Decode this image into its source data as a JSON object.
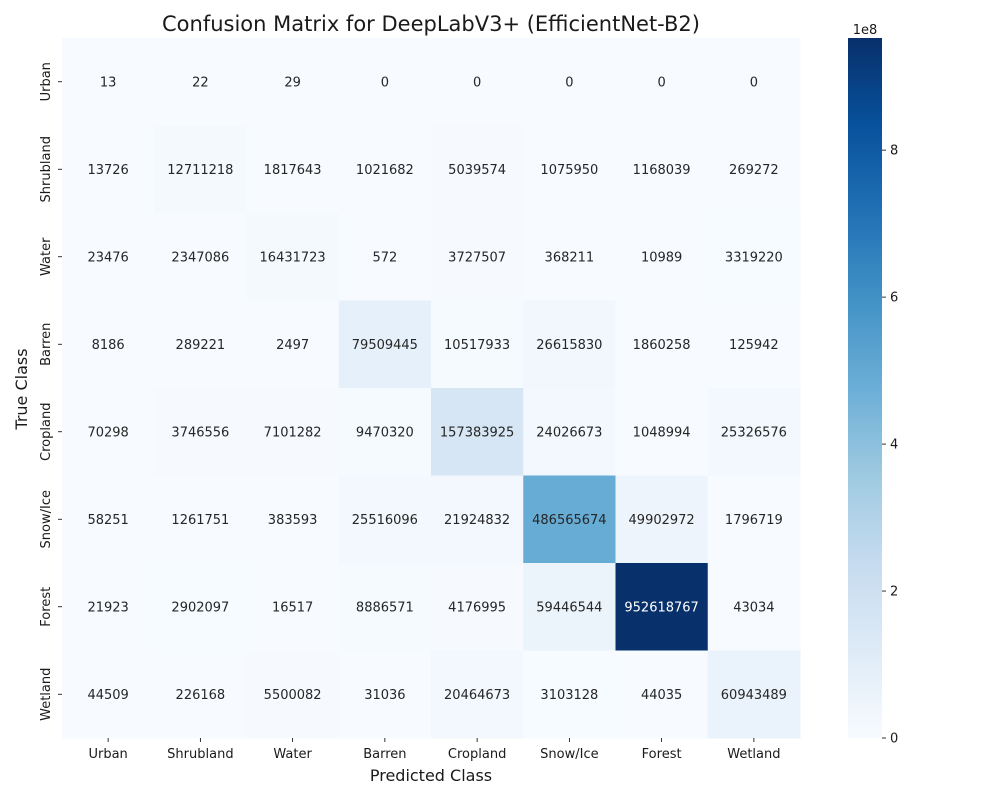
{
  "chart_data": {
    "type": "heatmap",
    "title": "Confusion Matrix for DeepLabV3+ (EfficientNet-B2)",
    "xlabel": "Predicted Class",
    "ylabel": "True Class",
    "x_categories": [
      "Urban",
      "Shrubland",
      "Water",
      "Barren",
      "Cropland",
      "Snow/Ice",
      "Forest",
      "Wetland"
    ],
    "y_categories": [
      "Urban",
      "Shrubland",
      "Water",
      "Barren",
      "Cropland",
      "Snow/Ice",
      "Forest",
      "Wetland"
    ],
    "values": [
      [
        13,
        22,
        29,
        0,
        0,
        0,
        0,
        0
      ],
      [
        13726,
        12711218,
        1817643,
        1021682,
        5039574,
        1075950,
        1168039,
        269272
      ],
      [
        23476,
        2347086,
        16431723,
        572,
        3727507,
        368211,
        10989,
        3319220
      ],
      [
        8186,
        289221,
        2497,
        79509445,
        10517933,
        26615830,
        1860258,
        125942
      ],
      [
        70298,
        3746556,
        7101282,
        9470320,
        157383925,
        24026673,
        1048994,
        25326576
      ],
      [
        58251,
        1261751,
        383593,
        25516096,
        21924832,
        486565674,
        49902972,
        1796719
      ],
      [
        21923,
        2902097,
        16517,
        8886571,
        4176995,
        59446544,
        952618767,
        43034
      ],
      [
        44509,
        226168,
        5500082,
        31036,
        20464673,
        3103128,
        44035,
        60943489
      ]
    ],
    "colormap": "Blues",
    "colorbar": {
      "min": 0,
      "max": 952618767,
      "ticks": [
        0,
        2,
        4,
        6,
        8
      ],
      "multiplier_label": "1e8"
    }
  }
}
